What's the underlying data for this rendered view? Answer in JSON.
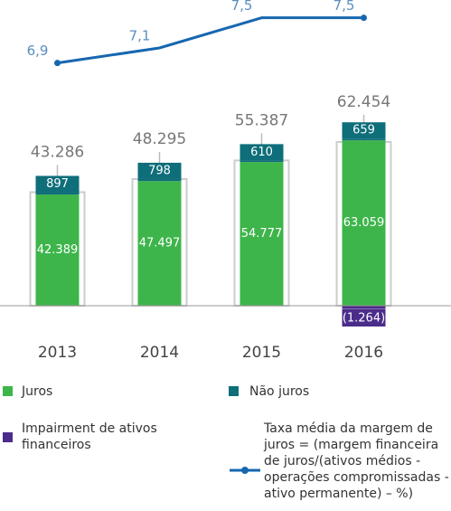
{
  "chart_data": {
    "type": "bar",
    "categories": [
      "2013",
      "2014",
      "2015",
      "2016"
    ],
    "series": [
      {
        "name": "Juros",
        "color": "#3db54a",
        "values": [
          42389,
          47497,
          54777,
          63059
        ],
        "value_labels": [
          "42.389",
          "47.497",
          "54.777",
          "63.059"
        ]
      },
      {
        "name": "Não juros",
        "color": "#0e6e7a",
        "values": [
          897,
          798,
          610,
          659
        ],
        "value_labels": [
          "897",
          "798",
          "610",
          "659"
        ]
      },
      {
        "name": "Impairment de ativos financeiros",
        "color": "#4b2c8a",
        "values": [
          null,
          null,
          null,
          -1264
        ],
        "value_labels": [
          null,
          null,
          null,
          "(1.264)"
        ]
      },
      {
        "name": "Taxa média da margem de juros = (margem financeira de juros/(ativos médios - operações compromissadas - ativo permanente) – %)",
        "color": "#1667b0",
        "axis": "y2",
        "values": [
          6.9,
          7.1,
          7.5,
          7.5
        ],
        "value_labels": [
          "6,9",
          "7,1",
          "7,5",
          "7,5"
        ]
      }
    ],
    "totals": [
      43286,
      48295,
      55387,
      62454
    ],
    "total_labels": [
      "43.286",
      "48.295",
      "55.387",
      "62.454"
    ],
    "ylim": [
      -20000,
      70000
    ],
    "y2lim": [
      6.5,
      7.7
    ]
  }
}
